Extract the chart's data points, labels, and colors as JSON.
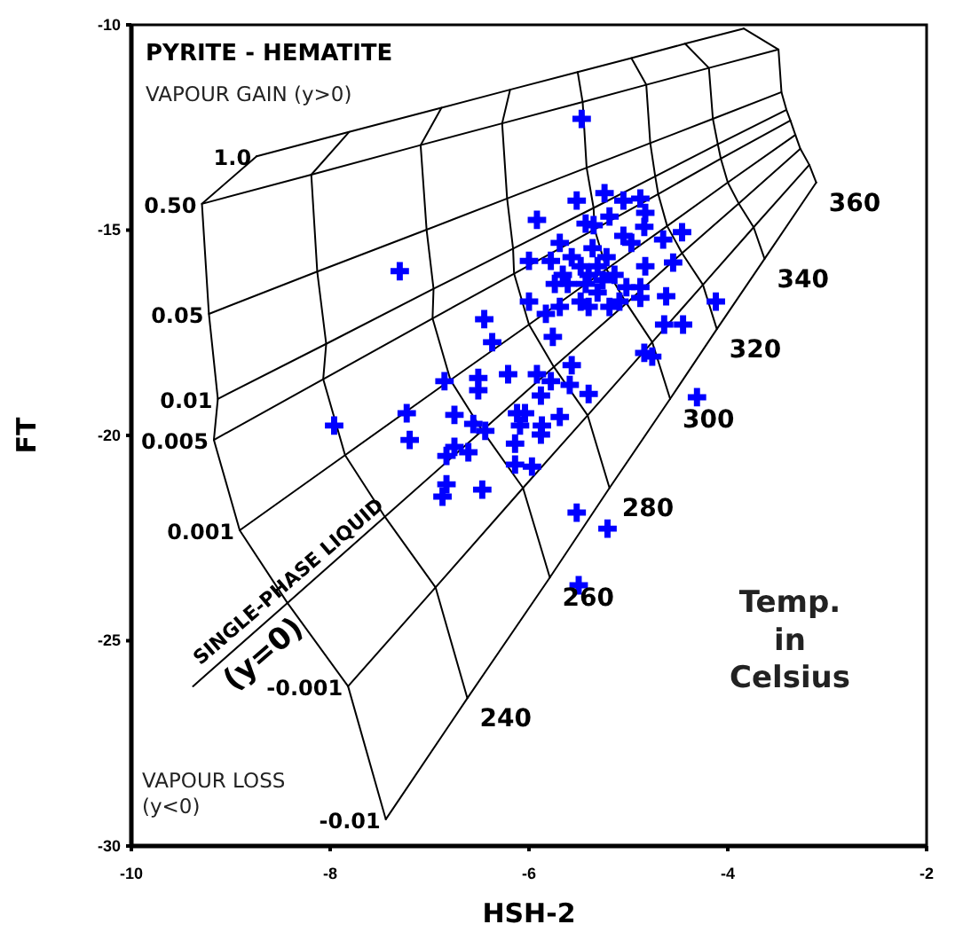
{
  "chart_data": {
    "type": "scatter",
    "title": "PYRITE - HEMATITE",
    "xlabel": "HSH-2",
    "ylabel": "FT",
    "xlim": [
      -10,
      -2
    ],
    "xticks": [
      -10,
      -8,
      -6,
      -4,
      -2
    ],
    "ylim": [
      -30,
      -10
    ],
    "yticks": [
      -30,
      -25,
      -20,
      -15,
      -10
    ],
    "annotations": [
      "VAPOUR GAIN (y>0)",
      "VAPOUR LOSS (y<0)",
      "Temp. in Celsius",
      {
        "text": "1.0",
        "x": -8.74,
        "y": -13.2
      },
      {
        "text": "0.50",
        "x": -9.29,
        "y": -14.36
      },
      {
        "text": "0.05",
        "x": -9.22,
        "y": -17.04
      },
      {
        "text": "0.01",
        "x": -9.13,
        "y": -19.11
      },
      {
        "text": "0.005",
        "x": -9.17,
        "y": -20.11
      },
      {
        "text": "0.001",
        "x": -8.91,
        "y": -22.31
      },
      {
        "text": "-0.001",
        "x": -7.82,
        "y": -26.11
      },
      {
        "text": "-0.01",
        "x": -7.44,
        "y": -29.35
      },
      {
        "text": "240",
        "x": -6.62,
        "y": -26.4
      },
      {
        "text": "260",
        "x": -5.79,
        "y": -23.46
      },
      {
        "text": "280",
        "x": -5.19,
        "y": -21.28
      },
      {
        "text": "300",
        "x": -4.58,
        "y": -19.11
      },
      {
        "text": "320",
        "x": -4.11,
        "y": -17.41
      },
      {
        "text": "340",
        "x": -3.63,
        "y": -15.7
      },
      {
        "text": "360",
        "x": -3.11,
        "y": -13.84
      },
      {
        "text": "SINGLE-PHASE LIQUID",
        "x": -8.32,
        "y": -23.84
      },
      {
        "text": "(y=0)",
        "x": -8.82,
        "y": -24.91
      }
    ],
    "series": [
      {
        "type": "line",
        "color": "#000000",
        "x": [
          -7.44,
          -7.82,
          -8.43,
          -8.91,
          -9.17,
          -9.13,
          -9.22,
          -9.29,
          -8.74
        ],
        "values": [
          -29.35,
          -26.11,
          -24.08,
          -22.31,
          -20.11,
          -19.11,
          -17.04,
          -14.36,
          -13.2
        ]
      },
      {
        "type": "line",
        "color": "#000000",
        "x": [
          -6.62,
          -6.94,
          -7.45,
          -7.85,
          -8.07,
          -8.04,
          -8.13,
          -8.19,
          -7.81
        ],
        "values": [
          -26.4,
          -23.7,
          -21.98,
          -20.48,
          -18.63,
          -17.77,
          -16.01,
          -13.65,
          -12.61
        ]
      },
      {
        "type": "line",
        "color": "#000000",
        "x": [
          -5.79,
          -6.06,
          -6.47,
          -6.79,
          -6.97,
          -6.96,
          -7.03,
          -7.09,
          -6.88
        ],
        "values": [
          -23.46,
          -21.28,
          -19.88,
          -18.65,
          -17.15,
          -16.43,
          -14.99,
          -12.93,
          -12.02
        ]
      },
      {
        "type": "line",
        "color": "#000000",
        "x": [
          -5.19,
          -5.41,
          -5.75,
          -6.0,
          -6.15,
          -6.16,
          -6.22,
          -6.27,
          -6.19
        ],
        "values": [
          -21.28,
          -19.51,
          -18.33,
          -17.3,
          -16.06,
          -15.45,
          -14.23,
          -12.4,
          -11.58
        ]
      },
      {
        "type": "line",
        "color": "#000000",
        "x": [
          -4.58,
          -4.76,
          -5.02,
          -5.22,
          -5.34,
          -5.35,
          -5.42,
          -5.46,
          -5.51
        ],
        "values": [
          -19.11,
          -17.73,
          -16.78,
          -15.95,
          -14.98,
          -14.46,
          -13.48,
          -11.88,
          -11.15
        ]
      },
      {
        "type": "line",
        "color": "#000000",
        "x": [
          -4.11,
          -4.25,
          -4.46,
          -4.61,
          -4.7,
          -4.73,
          -4.78,
          -4.82,
          -4.97
        ],
        "values": [
          -17.41,
          -16.33,
          -15.56,
          -14.9,
          -14.12,
          -13.69,
          -12.88,
          -11.46,
          -10.81
        ]
      },
      {
        "type": "line",
        "color": "#000000",
        "x": [
          -3.63,
          -3.74,
          -3.89,
          -4.0,
          -4.07,
          -4.1,
          -4.15,
          -4.19,
          -4.43
        ],
        "values": [
          -15.7,
          -14.93,
          -14.35,
          -13.84,
          -13.26,
          -12.91,
          -12.29,
          -11.05,
          -10.46
        ]
      },
      {
        "type": "line",
        "color": "#000000",
        "x": [
          -3.11,
          -3.18,
          -3.27,
          -3.32,
          -3.37,
          -3.41,
          -3.46,
          -3.49,
          -3.84
        ],
        "values": [
          -13.84,
          -13.41,
          -13.02,
          -12.68,
          -12.33,
          -12.07,
          -11.64,
          -10.6,
          -10.09
        ]
      },
      {
        "type": "line",
        "color": "#000000",
        "x": [
          -7.44,
          -6.62,
          -5.79,
          -5.19,
          -4.58,
          -4.11,
          -3.63,
          -3.11
        ],
        "values": [
          -29.35,
          -26.4,
          -23.46,
          -21.28,
          -19.11,
          -17.41,
          -15.7,
          -13.84
        ]
      },
      {
        "type": "line",
        "color": "#000000",
        "x": [
          -7.82,
          -6.94,
          -6.06,
          -5.41,
          -4.76,
          -4.25,
          -3.74,
          -3.18
        ],
        "values": [
          -26.11,
          -23.7,
          -21.28,
          -19.51,
          -17.73,
          -16.33,
          -14.93,
          -13.41
        ]
      },
      {
        "type": "line",
        "color": "#000000",
        "x": [
          -9.38,
          -8.43,
          -7.45,
          -6.47,
          -5.75,
          -5.02,
          -4.46,
          -3.89,
          -3.27
        ],
        "values": [
          -26.11,
          -24.08,
          -21.98,
          -19.88,
          -18.33,
          -16.78,
          -15.56,
          -14.35,
          -13.02
        ]
      },
      {
        "type": "line",
        "color": "#000000",
        "x": [
          -8.91,
          -7.85,
          -6.79,
          -6.0,
          -5.22,
          -4.61,
          -4.0,
          -3.32
        ],
        "values": [
          -22.31,
          -20.48,
          -18.65,
          -17.3,
          -15.95,
          -14.9,
          -13.84,
          -12.68
        ]
      },
      {
        "type": "line",
        "color": "#000000",
        "x": [
          -9.17,
          -8.07,
          -6.97,
          -6.15,
          -5.34,
          -4.7,
          -4.07,
          -3.37
        ],
        "values": [
          -20.11,
          -18.63,
          -17.15,
          -16.06,
          -14.98,
          -14.12,
          -13.26,
          -12.33
        ]
      },
      {
        "type": "line",
        "color": "#000000",
        "x": [
          -9.13,
          -8.04,
          -6.96,
          -6.16,
          -5.35,
          -4.73,
          -4.1,
          -3.41
        ],
        "values": [
          -19.11,
          -17.77,
          -16.43,
          -15.45,
          -14.46,
          -13.69,
          -12.91,
          -12.07
        ]
      },
      {
        "type": "line",
        "color": "#000000",
        "x": [
          -9.22,
          -8.13,
          -7.03,
          -6.22,
          -5.42,
          -4.78,
          -4.15,
          -3.46
        ],
        "values": [
          -17.04,
          -16.01,
          -14.99,
          -14.23,
          -13.48,
          -12.88,
          -12.29,
          -11.64
        ]
      },
      {
        "type": "line",
        "color": "#000000",
        "x": [
          -9.29,
          -8.19,
          -7.09,
          -6.27,
          -5.46,
          -4.82,
          -4.19,
          -3.49
        ],
        "values": [
          -14.36,
          -13.65,
          -12.93,
          -12.4,
          -11.88,
          -11.46,
          -11.05,
          -10.6
        ]
      },
      {
        "type": "line",
        "color": "#000000",
        "x": [
          -8.74,
          -7.81,
          -6.88,
          -6.19,
          -5.51,
          -4.97,
          -4.43,
          -3.84
        ],
        "values": [
          -13.2,
          -12.61,
          -12.02,
          -11.58,
          -11.15,
          -10.81,
          -10.46,
          -10.09
        ]
      },
      {
        "marker": "cross",
        "color": "#0000ff",
        "x": [
          -7.3,
          -6.45,
          -6.37,
          -6.21,
          -6.51,
          -6.51,
          -6.85,
          -7.23,
          -6.75,
          -7.96,
          -6.56,
          -6.44,
          -6.12,
          -7.2,
          -6.75,
          -6.83,
          -6.61,
          -6.14,
          -6.14,
          -6.83,
          -6.87,
          -6.47,
          -5.97,
          -5.88,
          -5.52,
          -5.21,
          -5.5,
          -5.47,
          -5.92,
          -5.52,
          -5.24,
          -5.05,
          -4.88,
          -4.83,
          -5.19,
          -5.43,
          -5.35,
          -6.0,
          -5.69,
          -5.78,
          -5.05,
          -4.97,
          -4.84,
          -4.65,
          -4.46,
          -4.55,
          -4.83,
          -4.88,
          -5.02,
          -6.0,
          -5.83,
          -5.69,
          -5.4,
          -5.19,
          -5.09,
          -4.88,
          -4.62,
          -4.12,
          -5.76,
          -4.64,
          -4.45,
          -4.84,
          -4.76,
          -5.92,
          -5.78,
          -5.57,
          -5.59,
          -5.4,
          -4.31,
          -5.88,
          -6.04,
          -5.69,
          -6.09,
          -5.87,
          -5.57,
          -5.48,
          -5.4,
          -5.31,
          -5.22,
          -5.43,
          -5.61,
          -5.31,
          -5.48,
          -5.14,
          -5.66,
          -5.36,
          -5.26,
          -5.74
        ],
        "values": [
          -16.0,
          -17.17,
          -17.73,
          -18.51,
          -18.6,
          -18.9,
          -18.68,
          -19.46,
          -19.5,
          -19.76,
          -19.72,
          -19.89,
          -19.46,
          -20.11,
          -20.28,
          -20.5,
          -20.41,
          -20.2,
          -20.71,
          -21.19,
          -21.49,
          -21.32,
          -20.76,
          -19.98,
          -21.88,
          -22.27,
          -23.65,
          -12.29,
          -14.75,
          -14.28,
          -14.1,
          -14.28,
          -14.23,
          -14.58,
          -14.67,
          -14.84,
          -14.88,
          -15.75,
          -15.31,
          -15.75,
          -15.14,
          -15.31,
          -14.92,
          -15.23,
          -15.05,
          -15.79,
          -15.88,
          -16.39,
          -16.39,
          -16.74,
          -17.04,
          -16.87,
          -16.87,
          -16.87,
          -16.74,
          -16.65,
          -16.61,
          -16.74,
          -17.6,
          -17.3,
          -17.3,
          -17.99,
          -18.08,
          -18.51,
          -18.68,
          -18.29,
          -18.77,
          -18.99,
          -19.07,
          -19.03,
          -19.46,
          -19.55,
          -19.76,
          -19.76,
          -15.66,
          -15.88,
          -16.09,
          -15.88,
          -15.66,
          -16.31,
          -16.31,
          -16.52,
          -16.74,
          -16.09,
          -16.09,
          -15.44,
          -16.22,
          -16.31
        ]
      }
    ]
  }
}
